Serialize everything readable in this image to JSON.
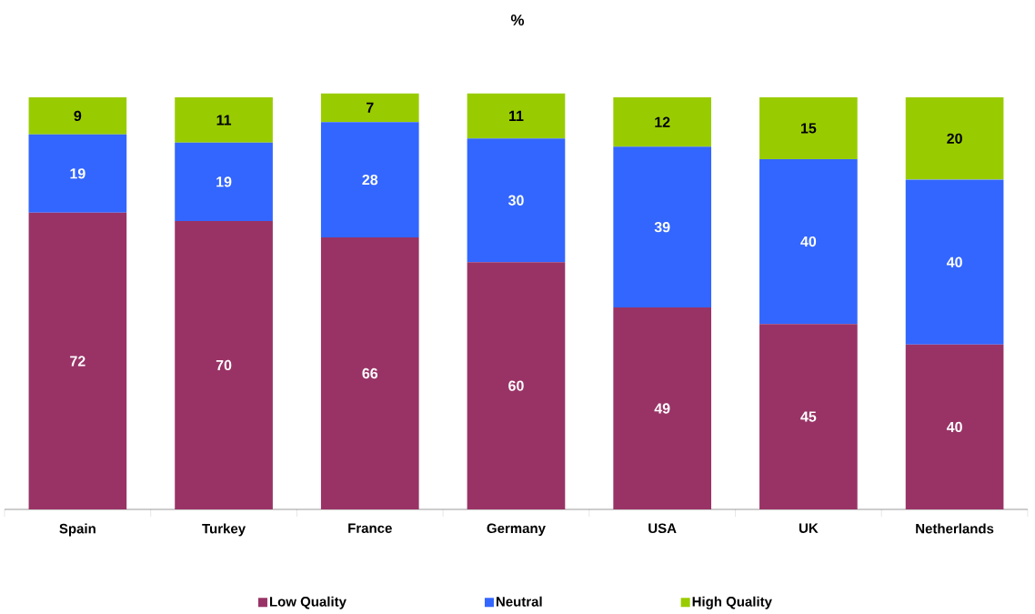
{
  "chart_data": {
    "type": "bar",
    "title": "%",
    "stacked": true,
    "data_labels": true,
    "legend": "bottom",
    "grid": false,
    "categories": [
      "Spain",
      "Turkey",
      "France",
      "Germany",
      "USA",
      "UK",
      "Netherlands"
    ],
    "series": [
      {
        "name": "Low Quality",
        "color": "#993366",
        "values": [
          72,
          70,
          66,
          60,
          49,
          45,
          40
        ]
      },
      {
        "name": "Neutral",
        "color": "#3366ff",
        "values": [
          19,
          19,
          28,
          30,
          39,
          40,
          40
        ]
      },
      {
        "name": "High Quality",
        "color": "#99cc00",
        "values": [
          9,
          11,
          7,
          11,
          12,
          15,
          20
        ]
      }
    ]
  }
}
